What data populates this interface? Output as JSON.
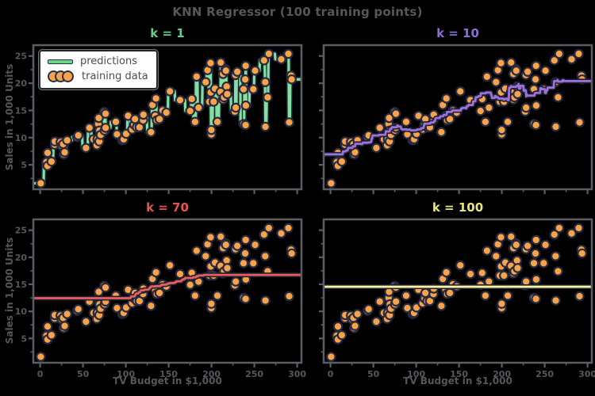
{
  "figure": {
    "title": "KNN Regressor (100 training points)",
    "background": "#000000",
    "text_color": "#54575c"
  },
  "legend": {
    "predictions_label": "predictions",
    "training_label": "training data"
  },
  "axes": {
    "xlabel": "TV Budget in $1,000",
    "ylabel": "Sales in 1,000 Units",
    "xticks": [
      0,
      50,
      100,
      150,
      200,
      250,
      300
    ],
    "yticks": [
      5,
      10,
      15,
      20,
      25
    ],
    "xlim": [
      -8,
      305
    ],
    "ylim": [
      0.5,
      27
    ],
    "spine_color": "#5a5e64",
    "tick_color": "#54575c"
  },
  "style": {
    "marker_fill": "#f9a348",
    "marker_edge": "#262a40",
    "line_edge": "#1d2030",
    "legend_line_color": "#6fd489"
  },
  "panels": [
    {
      "title": "k = 1",
      "k": 1,
      "line_color": "#82e0a0",
      "title_color": "#63cf8d"
    },
    {
      "title": "k = 10",
      "k": 10,
      "line_color": "#9d71dd",
      "title_color": "#8f6cd9"
    },
    {
      "title": "k = 70",
      "k": 70,
      "line_color": "#ea5d5d",
      "title_color": "#e85252"
    },
    {
      "title": "k = 100",
      "k": 100,
      "line_color": "#f5f2a3",
      "title_color": "#e9e47c"
    }
  ],
  "chart_data": {
    "type": "scatter",
    "title": "KNN Regressor (100 training points)",
    "xlabel": "TV Budget in $1,000",
    "ylabel": "Sales in 1,000 Units",
    "xlim": [
      -8,
      305
    ],
    "ylim": [
      0.5,
      27
    ],
    "grid": false,
    "legend_position": "upper left (panel k=1 only)",
    "panel_k_values": [
      1,
      10,
      70,
      100
    ],
    "note": "Same training scatter in all 4 panels; prediction curve per panel is k-nearest-neighbor mean of training y over an x grid",
    "x": [
      230.1,
      44.5,
      17.2,
      151.5,
      180.8,
      8.7,
      57.5,
      120.2,
      8.6,
      199.8,
      66.1,
      214.7,
      23.8,
      97.5,
      204.1,
      195.4,
      67.8,
      281.4,
      69.2,
      147.3,
      218.4,
      237.4,
      13.2,
      228.3,
      62.3,
      262.9,
      142.9,
      240.1,
      248.8,
      70.6,
      292.9,
      112.9,
      97.2,
      265.6,
      95.7,
      290.7,
      266.9,
      74.7,
      43.1,
      228.0,
      202.5,
      177.0,
      293.6,
      206.9,
      25.1,
      175.1,
      89.7,
      239.9,
      227.2,
      66.9,
      199.8,
      100.4,
      216.4,
      182.6,
      262.7,
      198.9,
      7.3,
      136.2,
      210.8,
      210.7,
      53.5,
      261.3,
      239.3,
      102.7,
      131.1,
      69.0,
      31.5,
      139.3,
      237.4,
      216.8,
      199.1,
      109.8,
      26.8,
      129.4,
      213.4,
      16.9,
      27.5,
      120.5,
      0.7,
      116.0,
      76.4,
      239.8,
      75.3,
      68.4,
      213.5,
      193.2,
      76.3,
      110.7,
      88.3,
      109.8,
      134.3,
      28.6,
      217.7,
      250.9,
      107.4,
      163.3,
      197.6,
      184.9,
      289.7,
      135.2
    ],
    "y": [
      22.1,
      10.4,
      9.3,
      18.5,
      12.9,
      7.2,
      11.8,
      13.2,
      4.8,
      10.6,
      8.6,
      17.4,
      9.2,
      9.7,
      19.0,
      22.4,
      12.5,
      24.4,
      11.3,
      14.6,
      18.0,
      12.5,
      5.6,
      15.5,
      9.7,
      12.0,
      15.0,
      15.9,
      18.9,
      10.5,
      21.4,
      11.9,
      9.6,
      17.4,
      9.5,
      12.8,
      25.4,
      14.7,
      10.1,
      21.5,
      16.6,
      17.1,
      20.7,
      12.9,
      8.5,
      14.9,
      10.6,
      23.2,
      14.8,
      9.7,
      11.4,
      10.7,
      22.6,
      21.2,
      20.2,
      23.7,
      5.5,
      13.2,
      23.8,
      18.4,
      8.1,
      24.2,
      20.7,
      14.0,
      16.0,
      9.3,
      9.5,
      13.4,
      18.9,
      22.3,
      18.3,
      12.4,
      8.8,
      11.0,
      17.0,
      8.7,
      6.9,
      14.2,
      1.6,
      11.9,
      11.8,
      12.3,
      11.3,
      13.6,
      21.7,
      20.2,
      14.4,
      13.4,
      12.9,
      12.4,
      14.0,
      7.3,
      19.4,
      22.3,
      11.5,
      16.9,
      16.6,
      15.5,
      25.4,
      17.2
    ]
  }
}
